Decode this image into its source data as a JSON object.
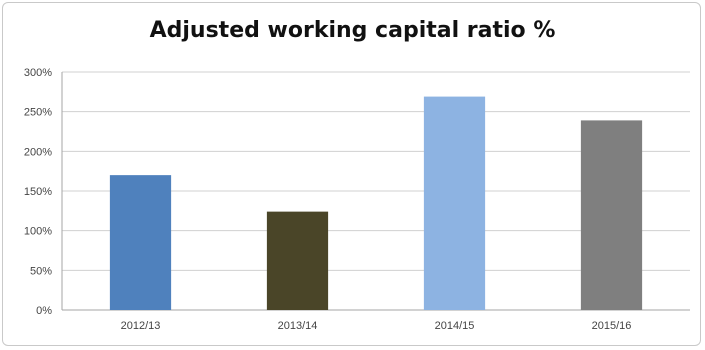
{
  "chart_data": {
    "type": "bar",
    "title": "Adjusted working capital ratio %",
    "xlabel": "",
    "ylabel": "",
    "categories": [
      "2012/13",
      "2013/14",
      "2014/15",
      "2015/16"
    ],
    "values": [
      170,
      124,
      269,
      239
    ],
    "colors": [
      "#4f81bd",
      "#4a4528",
      "#8db3e2",
      "#7f7f7f"
    ],
    "ylim": [
      0,
      300
    ],
    "y_ticks": [
      0,
      50,
      100,
      150,
      200,
      250,
      300
    ],
    "y_tick_labels": [
      "0%",
      "50%",
      "100%",
      "150%",
      "200%",
      "250%",
      "300%"
    ],
    "grid": true,
    "legend": "none"
  }
}
